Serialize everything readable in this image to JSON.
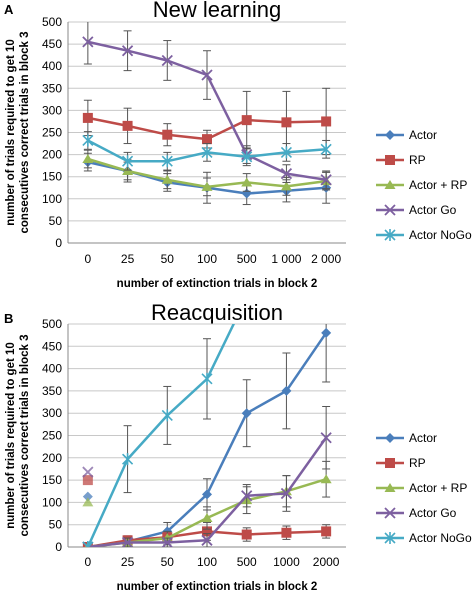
{
  "chart_data": [
    {
      "panel_label": "A",
      "type": "line",
      "title": "New learning",
      "xlabel": "number of extinction trials in block 2",
      "ylabel": "number of trials required to get 10 consecutives correct trials in block 3",
      "ylabel_lines": [
        "number of trials required to get 10",
        "consecutives correct trials in block 3"
      ],
      "categories": [
        "0",
        "25",
        "50",
        "100",
        "500",
        "1 000",
        "2 000"
      ],
      "ylim": [
        0,
        500
      ],
      "yticks": [
        0,
        50,
        100,
        150,
        200,
        250,
        300,
        350,
        400,
        450,
        500
      ],
      "grid": true,
      "legend": "right",
      "series": [
        {
          "name": "Actor",
          "color": "#4a7ebb",
          "marker": "diamond",
          "values": [
            183,
            163,
            137,
            125,
            112,
            118,
            125
          ],
          "errors": [
            20,
            25,
            20,
            35,
            25,
            25,
            35
          ]
        },
        {
          "name": "RP",
          "color": "#be4b48",
          "marker": "square",
          "values": [
            283,
            265,
            245,
            235,
            278,
            273,
            275
          ],
          "errors": [
            40,
            40,
            25,
            20,
            65,
            70,
            75
          ]
        },
        {
          "name": "Actor + RP",
          "color": "#98b954",
          "marker": "triangle",
          "values": [
            190,
            163,
            143,
            127,
            137,
            128,
            140
          ],
          "errors": [
            20,
            20,
            20,
            20,
            20,
            20,
            20
          ]
        },
        {
          "name": "Actor Go",
          "color": "#7d60a0",
          "marker": "x",
          "values": [
            455,
            435,
            413,
            380,
            200,
            157,
            143
          ],
          "errors": [
            50,
            45,
            45,
            55,
            20,
            20,
            20
          ]
        },
        {
          "name": "Actor NoGo",
          "color": "#46aac5",
          "marker": "asterisk",
          "values": [
            232,
            185,
            185,
            205,
            195,
            205,
            212
          ],
          "errors": [
            20,
            20,
            20,
            20,
            20,
            20,
            20
          ]
        }
      ]
    },
    {
      "panel_label": "B",
      "type": "line",
      "title": "Reacquisition",
      "xlabel": "number of extinction trials in block 2",
      "ylabel": "number of trials required to get 10 consecutives correct trials in block 3",
      "ylabel_lines": [
        "number of trials required to get 10",
        "consecutives correct trials in block 3"
      ],
      "categories": [
        "0",
        "25",
        "50",
        "100",
        "500",
        "1000",
        "2000"
      ],
      "ylim": [
        0,
        500
      ],
      "yticks": [
        0,
        50,
        100,
        150,
        200,
        250,
        300,
        350,
        400,
        450,
        500
      ],
      "grid": true,
      "legend": "right",
      "series": [
        {
          "name": "Actor",
          "color": "#4a7ebb",
          "marker": "diamond",
          "values": [
            0,
            12,
            35,
            118,
            300,
            350,
            480
          ],
          "errors": [
            0,
            10,
            20,
            35,
            75,
            85,
            110
          ]
        },
        {
          "name": "RP",
          "color": "#be4b48",
          "marker": "square",
          "values": [
            0,
            15,
            22,
            35,
            28,
            32,
            35
          ],
          "errors": [
            0,
            10,
            10,
            20,
            15,
            15,
            15
          ]
        },
        {
          "name": "Actor + RP",
          "color": "#98b954",
          "marker": "triangle",
          "values": [
            0,
            10,
            20,
            65,
            105,
            125,
            152
          ],
          "errors": [
            0,
            10,
            15,
            25,
            30,
            35,
            40
          ]
        },
        {
          "name": "Actor Go",
          "color": "#7d60a0",
          "marker": "x",
          "values": [
            0,
            10,
            10,
            15,
            115,
            120,
            245
          ],
          "errors": [
            0,
            10,
            10,
            15,
            25,
            40,
            70
          ]
        },
        {
          "name": "Actor NoGo",
          "color": "#46aac5",
          "marker": "asterisk",
          "values": [
            0,
            197,
            295,
            377,
            560,
            null,
            null
          ],
          "errors": [
            0,
            75,
            65,
            90,
            0,
            null,
            null
          ]
        }
      ],
      "outlier_points": [
        {
          "series": "Actor",
          "x": "0",
          "y": 113
        },
        {
          "series": "RP",
          "x": "0",
          "y": 150
        },
        {
          "series": "Actor + RP",
          "x": "0",
          "y": 100
        },
        {
          "series": "Actor Go",
          "x": "0",
          "y": 168
        }
      ]
    }
  ]
}
